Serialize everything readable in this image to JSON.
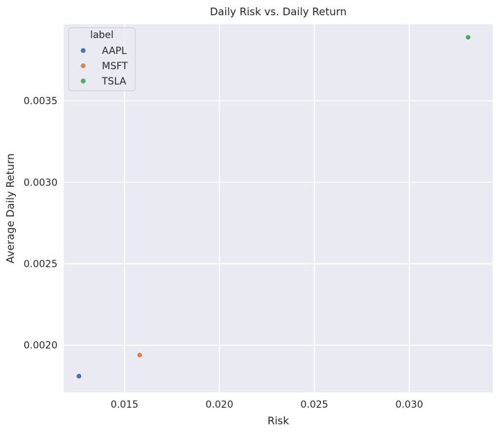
{
  "chart_data": {
    "type": "scatter",
    "title": "Daily Risk vs. Daily Return",
    "xlabel": "Risk",
    "ylabel": "Average Daily Return",
    "xlim": [
      0.0118,
      0.0344
    ],
    "ylim": [
      0.00171,
      0.00397
    ],
    "xticks": [
      0.015,
      0.02,
      0.025,
      0.03
    ],
    "yticks": [
      0.002,
      0.0025,
      0.003,
      0.0035
    ],
    "xtick_labels": [
      "0.015",
      "0.020",
      "0.025",
      "0.030"
    ],
    "ytick_labels": [
      "0.0020",
      "0.0025",
      "0.0030",
      "0.0035"
    ],
    "grid": true,
    "legend": {
      "title": "label",
      "placement": "top-left",
      "entries": [
        "AAPL",
        "MSFT",
        "TSLA"
      ]
    },
    "series": [
      {
        "name": "AAPL",
        "color": "#4c72b0",
        "points": [
          {
            "x": 0.0126,
            "y": 0.00181
          }
        ]
      },
      {
        "name": "MSFT",
        "color": "#dd8452",
        "points": [
          {
            "x": 0.0158,
            "y": 0.00194
          }
        ]
      },
      {
        "name": "TSLA",
        "color": "#55a868",
        "points": [
          {
            "x": 0.0331,
            "y": 0.00389
          }
        ]
      }
    ],
    "background_color": "#eaeaf2",
    "grid_color": "#ffffff"
  }
}
